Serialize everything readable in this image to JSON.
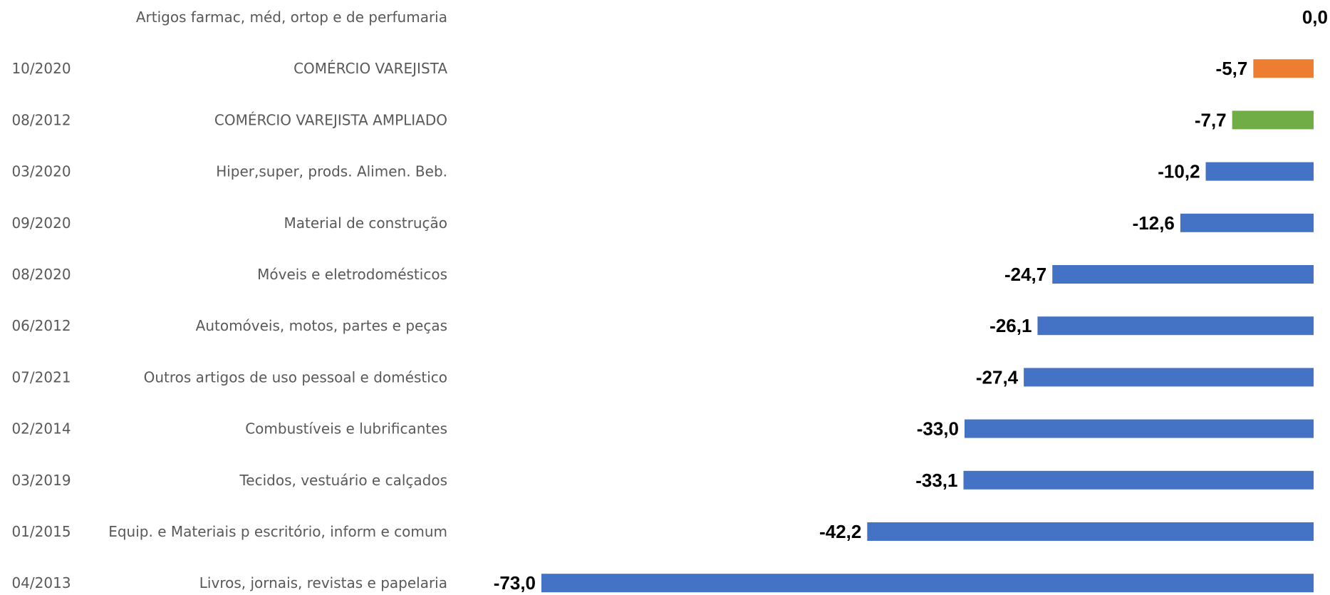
{
  "chart_data": {
    "type": "bar",
    "orientation": "horizontal",
    "xlim": [
      -73,
      0
    ],
    "grid": false,
    "legend": "none",
    "value_format": "pt-BR decimal comma, one decimal",
    "rows": [
      {
        "date": "",
        "category": "Artigos farmac, méd, ortop e de perfumaria",
        "value": 0.0,
        "value_label": "0,0",
        "color": "#4472C4"
      },
      {
        "date": "10/2020",
        "category": "COMÉRCIO VAREJISTA",
        "value": -5.7,
        "value_label": "-5,7",
        "color": "#ED7D31"
      },
      {
        "date": "08/2012",
        "category": "COMÉRCIO VAREJISTA AMPLIADO",
        "value": -7.7,
        "value_label": "-7,7",
        "color": "#70AD47"
      },
      {
        "date": "03/2020",
        "category": "Hiper,super, prods. Alimen. Beb.",
        "value": -10.2,
        "value_label": "-10,2",
        "color": "#4472C4"
      },
      {
        "date": "09/2020",
        "category": "Material de construção",
        "value": -12.6,
        "value_label": "-12,6",
        "color": "#4472C4"
      },
      {
        "date": "08/2020",
        "category": "Móveis e eletrodomésticos",
        "value": -24.7,
        "value_label": "-24,7",
        "color": "#4472C4"
      },
      {
        "date": "06/2012",
        "category": "Automóveis, motos, partes e peças",
        "value": -26.1,
        "value_label": "-26,1",
        "color": "#4472C4"
      },
      {
        "date": "07/2021",
        "category": "Outros artigos de uso pessoal e doméstico",
        "value": -27.4,
        "value_label": "-27,4",
        "color": "#4472C4"
      },
      {
        "date": "02/2014",
        "category": "Combustíveis e lubrificantes",
        "value": -33.0,
        "value_label": "-33,0",
        "color": "#4472C4"
      },
      {
        "date": "03/2019",
        "category": "Tecidos, vestuário e calçados",
        "value": -33.1,
        "value_label": "-33,1",
        "color": "#4472C4"
      },
      {
        "date": "01/2015",
        "category": "Equip. e Materiais p escritório, inform e comum",
        "value": -42.2,
        "value_label": "-42,2",
        "color": "#4472C4"
      },
      {
        "date": "04/2013",
        "category": "Livros, jornais, revistas e papelaria",
        "value": -73.0,
        "value_label": "-73,0",
        "color": "#4472C4"
      }
    ]
  }
}
